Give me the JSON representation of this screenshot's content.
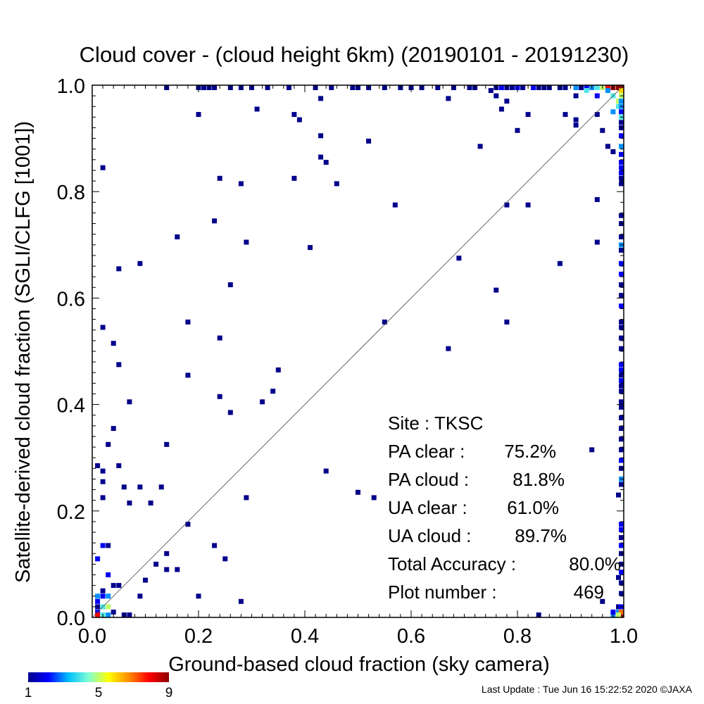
{
  "chart_data": {
    "type": "heatmap",
    "title": "Cloud cover - (cloud height 6km)  (20190101 - 20191230)",
    "xlabel": "Ground-based cloud fraction (sky camera)",
    "ylabel": "Satellite-derived cloud fraction (SGLI/CLFG [1001])",
    "xlim": [
      0,
      1
    ],
    "ylim": [
      0,
      1
    ],
    "xticks": [
      "0.0",
      "0.2",
      "0.4",
      "0.6",
      "0.8",
      "1.0"
    ],
    "yticks": [
      "0.0",
      "0.2",
      "0.4",
      "0.6",
      "0.8",
      "1.0"
    ],
    "bin_size": 0.01,
    "grid": false,
    "reference_line": "y = x",
    "colorbar": {
      "min": 1,
      "max": 9,
      "tick_labels": [
        "1",
        "5",
        "9"
      ],
      "colors": [
        "#00008b",
        "#0000ff",
        "#00bfff",
        "#7fffd4",
        "#ffff00",
        "#ff8c00",
        "#ff0000",
        "#8b0000"
      ]
    },
    "stats": [
      {
        "label": "Site : TKSC",
        "value": ""
      },
      {
        "label": "PA clear :",
        "value": "75.2%"
      },
      {
        "label": "PA cloud :",
        "value": "81.8%"
      },
      {
        "label": "UA clear :",
        "value": "61.0%"
      },
      {
        "label": "UA cloud :",
        "value": "89.7%"
      },
      {
        "label": "Total Accuracy :",
        "value": "80.0%"
      },
      {
        "label": "Plot number :",
        "value": "469"
      }
    ],
    "points": [
      [
        0.14,
        1.0,
        1
      ],
      [
        0.2,
        1.0,
        1
      ],
      [
        0.21,
        1.0,
        1
      ],
      [
        0.22,
        1.0,
        1
      ],
      [
        0.23,
        1.0,
        1
      ],
      [
        0.26,
        1.0,
        1
      ],
      [
        0.28,
        1.0,
        1
      ],
      [
        0.3,
        1.0,
        1
      ],
      [
        0.33,
        1.0,
        1
      ],
      [
        0.37,
        1.0,
        1
      ],
      [
        0.42,
        1.0,
        1
      ],
      [
        0.45,
        1.0,
        1
      ],
      [
        0.49,
        1.0,
        1
      ],
      [
        0.5,
        1.0,
        1
      ],
      [
        0.52,
        1.0,
        1
      ],
      [
        0.55,
        1.0,
        1
      ],
      [
        0.58,
        1.0,
        1
      ],
      [
        0.6,
        1.0,
        1
      ],
      [
        0.62,
        1.0,
        1
      ],
      [
        0.65,
        1.0,
        1
      ],
      [
        0.68,
        1.0,
        1
      ],
      [
        0.71,
        1.0,
        1
      ],
      [
        0.72,
        1.0,
        1
      ],
      [
        0.76,
        1.0,
        1
      ],
      [
        0.77,
        1.0,
        2
      ],
      [
        0.78,
        1.0,
        1
      ],
      [
        0.79,
        1.0,
        1
      ],
      [
        0.8,
        1.0,
        2
      ],
      [
        0.81,
        1.0,
        1
      ],
      [
        0.83,
        1.0,
        2
      ],
      [
        0.84,
        1.0,
        1
      ],
      [
        0.85,
        1.0,
        1
      ],
      [
        0.86,
        1.0,
        1
      ],
      [
        0.88,
        1.0,
        1
      ],
      [
        0.89,
        1.0,
        1
      ],
      [
        0.91,
        1.0,
        3
      ],
      [
        0.92,
        1.0,
        1
      ],
      [
        0.93,
        1.0,
        2
      ],
      [
        0.94,
        1.0,
        3
      ],
      [
        0.95,
        1.0,
        4
      ],
      [
        0.96,
        1.0,
        5
      ],
      [
        0.97,
        1.0,
        8
      ],
      [
        0.98,
        1.0,
        9
      ],
      [
        0.99,
        1.0,
        9
      ],
      [
        1.0,
        1.0,
        9
      ],
      [
        0.75,
        0.99,
        1
      ],
      [
        0.76,
        0.98,
        1
      ],
      [
        0.78,
        0.97,
        1
      ],
      [
        0.91,
        0.98,
        1
      ],
      [
        0.93,
        0.99,
        4
      ],
      [
        0.95,
        0.98,
        2
      ],
      [
        0.97,
        0.99,
        3
      ],
      [
        0.98,
        0.98,
        4
      ],
      [
        0.99,
        0.97,
        5
      ],
      [
        0.99,
        0.96,
        4
      ],
      [
        0.98,
        0.95,
        3
      ],
      [
        1.0,
        0.99,
        6
      ],
      [
        1.0,
        0.98,
        5
      ],
      [
        1.0,
        0.97,
        3
      ],
      [
        1.0,
        0.96,
        3
      ],
      [
        1.0,
        0.95,
        2
      ],
      [
        1.0,
        0.94,
        4
      ],
      [
        1.0,
        0.93,
        1
      ],
      [
        1.0,
        0.92,
        1
      ],
      [
        0.2,
        0.945,
        1
      ],
      [
        0.31,
        0.955,
        1
      ],
      [
        0.38,
        0.945,
        1
      ],
      [
        0.39,
        0.935,
        1
      ],
      [
        0.43,
        0.975,
        1
      ],
      [
        0.67,
        0.975,
        1
      ],
      [
        0.77,
        0.955,
        1
      ],
      [
        0.82,
        0.945,
        1
      ],
      [
        0.89,
        0.945,
        1
      ],
      [
        0.91,
        0.935,
        1
      ],
      [
        0.91,
        0.925,
        1
      ],
      [
        0.95,
        0.945,
        1
      ],
      [
        0.43,
        0.905,
        1
      ],
      [
        0.52,
        0.895,
        1
      ],
      [
        0.73,
        0.885,
        1
      ],
      [
        0.8,
        0.915,
        1
      ],
      [
        0.96,
        0.915,
        1
      ],
      [
        0.97,
        0.885,
        1
      ],
      [
        0.98,
        0.875,
        1
      ],
      [
        1.0,
        0.905,
        2
      ],
      [
        1.0,
        0.885,
        3
      ],
      [
        1.0,
        0.87,
        2
      ],
      [
        0.02,
        0.845,
        1
      ],
      [
        0.24,
        0.825,
        1
      ],
      [
        0.28,
        0.815,
        1
      ],
      [
        0.38,
        0.825,
        1
      ],
      [
        0.43,
        0.865,
        1
      ],
      [
        0.44,
        0.855,
        1
      ],
      [
        0.46,
        0.815,
        1
      ],
      [
        1.0,
        0.855,
        2
      ],
      [
        1.0,
        0.845,
        2
      ],
      [
        1.0,
        0.835,
        2
      ],
      [
        1.0,
        0.825,
        1
      ],
      [
        1.0,
        0.815,
        1
      ],
      [
        0.23,
        0.745,
        1
      ],
      [
        0.16,
        0.715,
        1
      ],
      [
        0.29,
        0.705,
        1
      ],
      [
        0.41,
        0.695,
        1
      ],
      [
        0.57,
        0.775,
        1
      ],
      [
        0.78,
        0.775,
        1
      ],
      [
        0.82,
        0.775,
        1
      ],
      [
        0.95,
        0.785,
        1
      ],
      [
        0.95,
        0.705,
        1
      ],
      [
        1.0,
        0.755,
        1
      ],
      [
        1.0,
        0.74,
        1
      ],
      [
        1.0,
        0.715,
        1
      ],
      [
        1.0,
        0.7,
        3
      ],
      [
        1.0,
        0.69,
        1
      ],
      [
        0.05,
        0.655,
        1
      ],
      [
        0.09,
        0.665,
        1
      ],
      [
        0.26,
        0.625,
        1
      ],
      [
        0.69,
        0.675,
        1
      ],
      [
        0.88,
        0.665,
        1
      ],
      [
        1.0,
        0.665,
        2
      ],
      [
        1.0,
        0.645,
        2
      ],
      [
        1.0,
        0.625,
        1
      ],
      [
        1.0,
        0.605,
        1
      ],
      [
        0.02,
        0.545,
        1
      ],
      [
        0.18,
        0.555,
        1
      ],
      [
        0.24,
        0.525,
        1
      ],
      [
        0.55,
        0.555,
        1
      ],
      [
        0.67,
        0.505,
        1
      ],
      [
        0.76,
        0.615,
        1
      ],
      [
        0.78,
        0.555,
        1
      ],
      [
        0.04,
        0.515,
        1
      ],
      [
        0.05,
        0.475,
        1
      ],
      [
        1.0,
        0.585,
        2
      ],
      [
        1.0,
        0.555,
        1
      ],
      [
        1.0,
        0.545,
        1
      ],
      [
        1.0,
        0.525,
        1
      ],
      [
        1.0,
        0.505,
        1
      ],
      [
        0.07,
        0.405,
        1
      ],
      [
        0.18,
        0.455,
        1
      ],
      [
        0.24,
        0.415,
        1
      ],
      [
        0.26,
        0.385,
        1
      ],
      [
        0.32,
        0.405,
        1
      ],
      [
        0.34,
        0.425,
        1
      ],
      [
        0.35,
        0.465,
        1
      ],
      [
        1.0,
        0.475,
        2
      ],
      [
        1.0,
        0.465,
        2
      ],
      [
        1.0,
        0.455,
        1
      ],
      [
        1.0,
        0.445,
        2
      ],
      [
        1.0,
        0.435,
        1
      ],
      [
        1.0,
        0.425,
        1
      ],
      [
        1.0,
        0.405,
        1
      ],
      [
        1.0,
        0.395,
        1
      ],
      [
        0.04,
        0.355,
        1
      ],
      [
        0.03,
        0.325,
        1
      ],
      [
        0.14,
        0.325,
        1
      ],
      [
        0.01,
        0.285,
        1
      ],
      [
        0.02,
        0.275,
        1
      ],
      [
        0.05,
        0.285,
        1
      ],
      [
        0.02,
        0.255,
        1
      ],
      [
        0.06,
        0.245,
        1
      ],
      [
        0.09,
        0.245,
        1
      ],
      [
        0.13,
        0.245,
        1
      ],
      [
        0.02,
        0.225,
        1
      ],
      [
        0.07,
        0.215,
        1
      ],
      [
        0.11,
        0.215,
        1
      ],
      [
        0.29,
        0.225,
        1
      ],
      [
        0.44,
        0.275,
        1
      ],
      [
        0.5,
        0.235,
        1
      ],
      [
        0.53,
        0.225,
        1
      ],
      [
        0.94,
        0.315,
        1
      ],
      [
        1.0,
        0.375,
        1
      ],
      [
        1.0,
        0.355,
        1
      ],
      [
        1.0,
        0.335,
        1
      ],
      [
        1.0,
        0.315,
        1
      ],
      [
        1.0,
        0.295,
        2
      ],
      [
        1.0,
        0.28,
        1
      ],
      [
        1.0,
        0.26,
        3
      ],
      [
        1.0,
        0.25,
        1
      ],
      [
        0.99,
        0.23,
        1
      ],
      [
        0.18,
        0.175,
        1
      ],
      [
        0.02,
        0.135,
        2
      ],
      [
        0.03,
        0.135,
        1
      ],
      [
        0.01,
        0.11,
        2
      ],
      [
        0.03,
        0.08,
        2
      ],
      [
        0.14,
        0.12,
        1
      ],
      [
        0.12,
        0.1,
        1
      ],
      [
        0.14,
        0.09,
        1
      ],
      [
        0.16,
        0.09,
        1
      ],
      [
        0.1,
        0.07,
        1
      ],
      [
        0.23,
        0.135,
        1
      ],
      [
        0.25,
        0.11,
        1
      ],
      [
        1.0,
        0.175,
        2
      ],
      [
        1.0,
        0.165,
        2
      ],
      [
        1.0,
        0.15,
        1
      ],
      [
        1.0,
        0.135,
        2
      ],
      [
        1.0,
        0.12,
        1
      ],
      [
        1.0,
        0.1,
        1
      ],
      [
        1.0,
        0.085,
        2
      ],
      [
        1.0,
        0.065,
        1
      ],
      [
        0.99,
        0.075,
        1
      ],
      [
        1.0,
        0.045,
        1
      ],
      [
        0.01,
        0.04,
        3
      ],
      [
        0.02,
        0.04,
        2
      ],
      [
        0.03,
        0.04,
        3
      ],
      [
        0.04,
        0.06,
        1
      ],
      [
        0.05,
        0.06,
        1
      ],
      [
        0.02,
        0.05,
        1
      ],
      [
        0.09,
        0.04,
        1
      ],
      [
        0.2,
        0.04,
        1
      ],
      [
        0.28,
        0.03,
        1
      ],
      [
        0.01,
        0.03,
        2
      ],
      [
        0.02,
        0.02,
        4
      ],
      [
        0.03,
        0.02,
        5
      ],
      [
        0.04,
        0.01,
        1
      ],
      [
        0.01,
        0.02,
        1
      ],
      [
        0.01,
        0.01,
        2
      ],
      [
        0.01,
        0.0,
        8
      ],
      [
        0.02,
        0.0,
        4
      ],
      [
        0.03,
        0.0,
        3
      ],
      [
        0.06,
        0.0,
        1
      ],
      [
        0.07,
        0.0,
        1
      ],
      [
        0.84,
        0.0,
        1
      ],
      [
        0.96,
        0.03,
        1
      ],
      [
        0.98,
        0.0,
        3
      ],
      [
        0.98,
        0.01,
        2
      ],
      [
        0.99,
        0.01,
        3
      ],
      [
        0.99,
        0.02,
        1
      ],
      [
        1.0,
        0.0,
        9
      ],
      [
        1.0,
        0.01,
        7
      ],
      [
        1.0,
        0.02,
        2
      ],
      [
        0.99,
        0.0,
        5
      ]
    ]
  },
  "footer": {
    "last_update": "Last Update : Tue Jun 16 15:22:52 2020  ©JAXA"
  }
}
